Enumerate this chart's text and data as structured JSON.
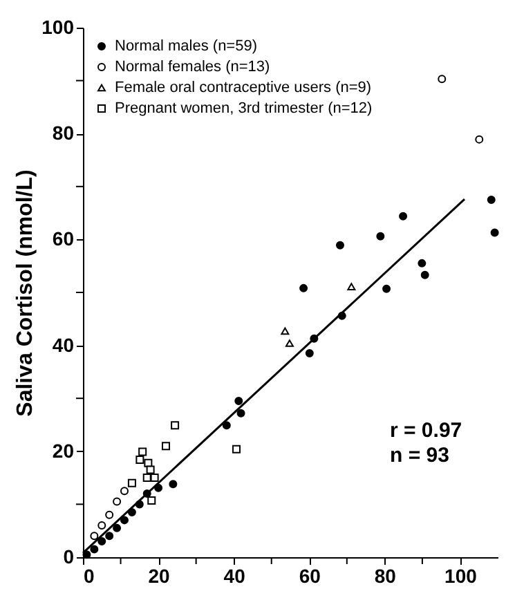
{
  "chart_data": {
    "type": "scatter",
    "ylabel": "Saliva Cortisol  (nmol/L)",
    "annotations": [
      "r = 0.97",
      "n = 93"
    ],
    "xlim": [
      0,
      110
    ],
    "ylim": [
      0,
      100
    ],
    "xticks": [
      0,
      {
        "value": 10,
        "label": null
      },
      20,
      {
        "value": 30,
        "label": null
      },
      40,
      {
        "value": 50,
        "label": null
      },
      60,
      {
        "value": 70,
        "label": null
      },
      80,
      {
        "value": 90,
        "label": null
      },
      100
    ],
    "yticks": [
      0,
      {
        "value": 10,
        "label": null
      },
      20,
      {
        "value": 30,
        "label": null
      },
      40,
      {
        "value": 50,
        "label": null
      },
      60,
      {
        "value": 70,
        "label": null
      },
      80,
      {
        "value": 90,
        "label": null
      },
      100
    ],
    "grid": false,
    "legend": "top left",
    "series": [
      {
        "name": "Normal males (n=59)",
        "color": "#000000",
        "marker": "circle",
        "x": [
          1,
          3,
          5,
          7,
          9,
          11,
          13,
          15,
          17,
          20,
          23.9,
          38.1,
          41.3,
          41.9,
          58.5,
          60.1,
          61.3,
          68.2,
          68.7,
          78.9,
          80.5,
          84.9,
          89.9,
          90.7,
          108.3,
          109.2
        ],
        "values": [
          0.5,
          1.5,
          3,
          4,
          5.5,
          7,
          8.5,
          10,
          12,
          13.1,
          13.8,
          24.9,
          29.5,
          27.2,
          50.8,
          38.5,
          41.3,
          58.9,
          45.6,
          60.6,
          50.7,
          64.4,
          55.5,
          53.3,
          67.5,
          61.3
        ]
      },
      {
        "name": "Normal females (n=13)",
        "color": "#ffffff",
        "marker": "circle",
        "x": [
          3,
          5,
          7,
          9,
          11,
          95.2,
          105.1
        ],
        "values": [
          4,
          6,
          8,
          10.5,
          12.5,
          90.3,
          78.9
        ]
      },
      {
        "name": "Female oral contraceptive users (n=9)",
        "color": "#ffffff",
        "marker": "triangle",
        "x": [
          53.6,
          54.8,
          71.2
        ],
        "values": [
          42.7,
          40.4,
          51.1
        ]
      },
      {
        "name": "Pregnant women, 3rd trimester (n=12)",
        "color": "#ffffff",
        "marker": "square",
        "x": [
          13,
          15.1,
          15.8,
          17,
          17.3,
          17.9,
          18.2,
          22,
          24.4,
          40.7,
          19
        ],
        "values": [
          14,
          18.4,
          19.9,
          15,
          17.8,
          16.5,
          10.7,
          21,
          24.9,
          20.4,
          15
        ]
      },
      {
        "type": "line",
        "color": "#000000",
        "x": [
          0,
          101.2
        ],
        "values": [
          0.8,
          67.6
        ]
      }
    ]
  }
}
